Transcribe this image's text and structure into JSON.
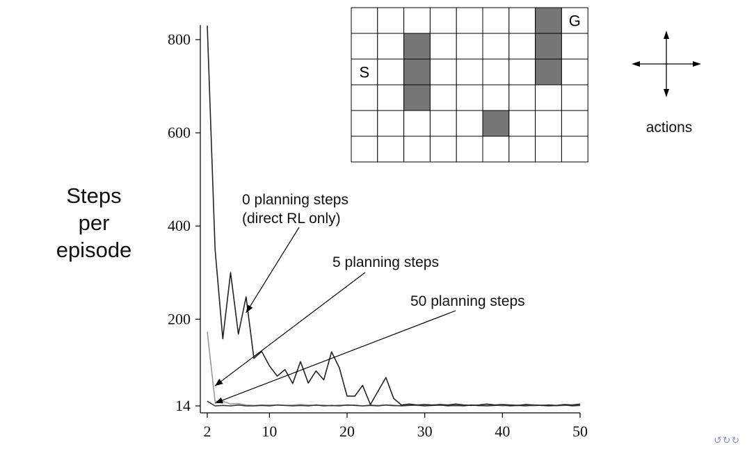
{
  "chart_data": {
    "type": "line",
    "ylabel": [
      "Steps",
      "per",
      "episode"
    ],
    "xlabel": "",
    "xlim": [
      2,
      50
    ],
    "ylim": [
      0,
      830
    ],
    "x_ticks": [
      2,
      10,
      20,
      30,
      40,
      50
    ],
    "y_ticks": [
      14,
      200,
      400,
      600,
      800
    ],
    "x": [
      2,
      3,
      4,
      5,
      6,
      7,
      8,
      9,
      10,
      11,
      12,
      13,
      14,
      15,
      16,
      17,
      18,
      19,
      20,
      21,
      22,
      23,
      24,
      25,
      26,
      27,
      28,
      29,
      30,
      31,
      32,
      33,
      34,
      35,
      36,
      37,
      38,
      39,
      40,
      41,
      42,
      43,
      44,
      45,
      46,
      47,
      48,
      49,
      50
    ],
    "series": [
      {
        "name": "0 planning steps",
        "color": "#222222",
        "values": [
          830,
          350,
          158,
          300,
          168,
          248,
          116,
          131,
          100,
          78,
          92,
          62,
          109,
          63,
          89,
          70,
          130,
          96,
          35,
          35,
          58,
          17,
          46,
          75,
          30,
          16,
          18,
          16,
          17,
          16,
          17,
          16,
          18,
          16,
          15,
          16,
          18,
          16,
          17,
          16,
          15,
          17,
          16,
          15,
          16,
          15,
          17,
          16,
          18
        ]
      },
      {
        "name": "5 planning steps",
        "color": "#999999",
        "values": [
          173,
          24,
          24,
          18,
          19,
          16,
          15,
          16,
          16,
          16,
          15,
          16,
          17,
          16,
          15,
          16,
          14,
          16,
          15,
          16,
          14,
          16,
          15,
          16,
          14,
          15,
          16,
          15,
          14,
          16,
          15,
          16,
          14,
          15,
          16,
          14,
          15,
          16,
          14,
          15,
          16,
          15,
          14,
          16,
          15,
          14,
          15,
          16,
          15
        ]
      },
      {
        "name": "50 planning steps",
        "color": "#333333",
        "values": [
          24,
          14,
          15,
          14,
          16,
          14,
          14,
          15,
          14,
          16,
          15,
          14,
          15,
          14,
          16,
          14,
          15,
          14,
          16,
          15,
          14,
          15,
          14,
          16,
          15,
          14,
          15,
          16,
          14,
          15,
          16,
          14,
          15,
          14,
          16,
          15,
          14,
          15,
          16,
          14,
          15,
          14,
          16,
          15,
          14,
          15,
          16,
          14,
          15
        ]
      }
    ],
    "annotations": [
      {
        "line1": "0 planning steps",
        "line2": "(direct RL only)",
        "tip": [
          7,
          214
        ]
      },
      {
        "line1": "5 planning steps",
        "line2": "",
        "tip": [
          3,
          57
        ]
      },
      {
        "line1": "50 planning steps",
        "line2": "",
        "tip": [
          3,
          20
        ]
      }
    ]
  },
  "grid_world": {
    "rows": 6,
    "cols": 9,
    "obstacles": [
      [
        2,
        1
      ],
      [
        2,
        2
      ],
      [
        2,
        3
      ],
      [
        7,
        0
      ],
      [
        7,
        1
      ],
      [
        7,
        2
      ],
      [
        5,
        4
      ]
    ],
    "start": {
      "label": "S",
      "cell": [
        0,
        2
      ]
    },
    "goal": {
      "label": "G",
      "cell": [
        8,
        0
      ]
    }
  },
  "actions_label": "actions"
}
